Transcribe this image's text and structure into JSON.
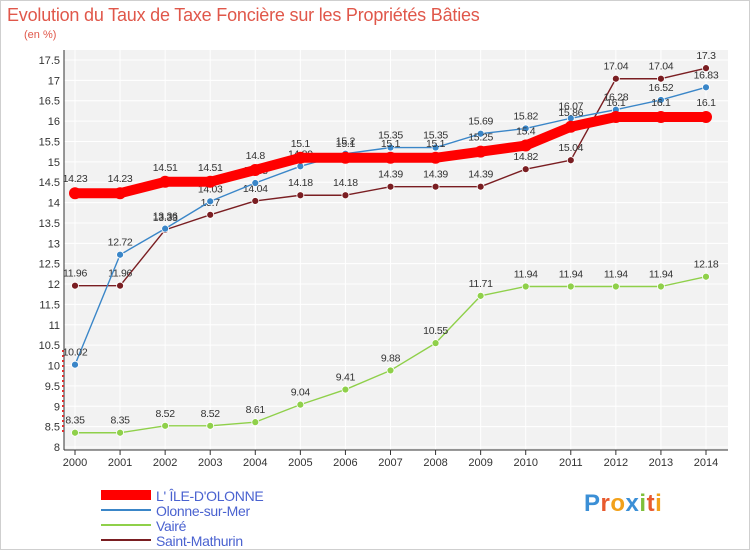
{
  "header": {
    "title": "Evolution du Taux de Taxe Foncière sur les Propriétés Bâties",
    "unit": "(en %)"
  },
  "brand": {
    "name": "Proxiti",
    "letter_colors": [
      "#3b8fd6",
      "#e85a2e",
      "#f2a11a",
      "#3b8fd6",
      "#7fbf3a",
      "#e85a2e",
      "#f2a11a"
    ]
  },
  "chart_data": {
    "type": "line",
    "title": "Evolution du Taux de Taxe Foncière sur les Propriétés Bâties",
    "ylabel": "(en %)",
    "x": [
      "2000",
      "2001",
      "2002",
      "2003",
      "2004",
      "2005",
      "2006",
      "2007",
      "2008",
      "2009",
      "2010",
      "2011",
      "2012",
      "2013",
      "2014"
    ],
    "ylim": [
      8,
      17.5
    ],
    "yticks": [
      "8",
      "8.5",
      "9",
      "9.5",
      "10",
      "10.5",
      "11",
      "11.5",
      "12",
      "12.5",
      "13",
      "13.5",
      "14",
      "14.5",
      "15",
      "15.5",
      "16",
      "16.5",
      "17",
      "17.5"
    ],
    "grid": true,
    "legend_position": "bottom-left",
    "series": [
      {
        "name": "L' ÎLE-D'OLONNE",
        "color": "#ff0000",
        "values": [
          14.23,
          14.23,
          14.51,
          14.51,
          14.8,
          15.1,
          15.1,
          15.1,
          15.1,
          15.25,
          15.4,
          15.86,
          16.1,
          16.1,
          16.1
        ],
        "labels": [
          "14.23",
          "14.23",
          "14.51",
          "14.51",
          "14.8",
          "15.1",
          "15.1",
          "15.1",
          "15.1",
          "15.25",
          "15.4",
          "15.86",
          "16.1",
          "16.1",
          "16.1"
        ]
      },
      {
        "name": "Olonne-sur-Mer",
        "color": "#3a86c8",
        "values": [
          10.02,
          12.72,
          13.36,
          14.03,
          14.48,
          14.89,
          15.2,
          15.35,
          15.35,
          15.69,
          15.82,
          16.07,
          16.28,
          16.52,
          16.83
        ],
        "labels": [
          "10.02",
          "12.72",
          "13.36",
          "14.03",
          "14.48",
          "14.89",
          "15.2",
          "15.35",
          "15.35",
          "15.69",
          "15.82",
          "16.07",
          "16.28",
          "16.52",
          "16.83"
        ]
      },
      {
        "name": "Vairé",
        "color": "#8fd04a",
        "values": [
          8.35,
          8.35,
          8.52,
          8.52,
          8.61,
          9.04,
          9.41,
          9.88,
          10.55,
          11.71,
          11.94,
          11.94,
          11.94,
          11.94,
          12.18
        ],
        "labels": [
          "8.35",
          "8.35",
          "8.52",
          "8.52",
          "8.61",
          "9.04",
          "9.41",
          "9.88",
          "10.55",
          "11.71",
          "11.94",
          "11.94",
          "11.94",
          "11.94",
          "12.18"
        ]
      },
      {
        "name": "Saint-Mathurin",
        "color": "#7a1e22",
        "values": [
          11.96,
          11.96,
          13.33,
          13.7,
          14.04,
          14.18,
          14.18,
          14.39,
          14.39,
          14.39,
          14.82,
          15.04,
          17.04,
          17.04,
          17.3
        ],
        "labels": [
          "11.96",
          "11.96",
          "13.33",
          "13.7",
          "14.04",
          "14.18",
          "14.18",
          "14.39",
          "14.39",
          "14.39",
          "14.82",
          "15.04",
          "17.04",
          "17.04",
          "17.3"
        ]
      }
    ]
  }
}
